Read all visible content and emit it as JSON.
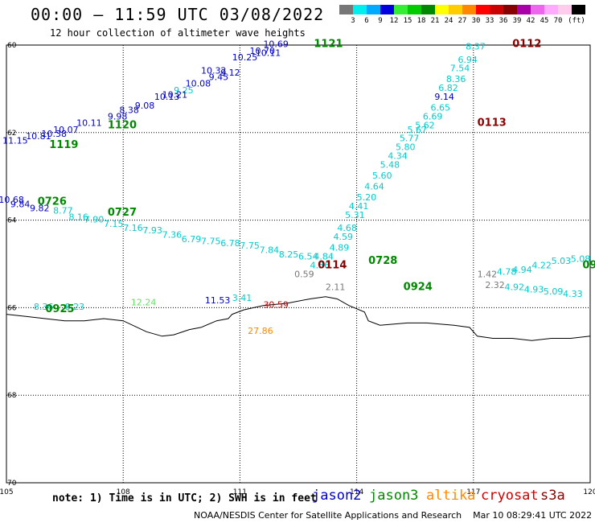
{
  "header": {
    "title": "00:00 – 11:59 UTC 03/08/2022",
    "subtitle": "12 hour collection of altimeter wave heights"
  },
  "colorbar": {
    "colors": [
      "#777777",
      "#00eeee",
      "#00aaff",
      "#0000dd",
      "#33ee33",
      "#00cc00",
      "#008800",
      "#ffff00",
      "#ffcc00",
      "#ff8800",
      "#ff0000",
      "#cc0000",
      "#880000",
      "#aa00aa",
      "#ee66ee",
      "#ffaaff",
      "#ffccee",
      "#000000"
    ],
    "labels": [
      "3",
      "6",
      "9",
      "12",
      "15",
      "18",
      "21",
      "24",
      "27",
      "30",
      "33",
      "36",
      "39",
      "42",
      "45",
      "70",
      "(ft)"
    ]
  },
  "map": {
    "lon_ticks": [
      "105",
      "108",
      "111",
      "114",
      "117",
      "120"
    ],
    "lat_ticks": [
      "60",
      "62",
      "64",
      "66",
      "68",
      "70"
    ],
    "satellites": {
      "jason2": {
        "color": "#0000cc"
      },
      "jason3": {
        "color": "#008800"
      },
      "altika": {
        "color": "#ff8800"
      },
      "cryosat": {
        "color": "#cc0000"
      },
      "s3a": {
        "color": "#880000"
      },
      "other": {
        "color": "#00cccc"
      }
    },
    "observations": [
      {
        "text": "10.69",
        "lon": 111.6,
        "lat": 60.05,
        "sat": "jason2"
      },
      {
        "text": "10.70",
        "lon": 111.25,
        "lat": 60.2,
        "sat": "jason2"
      },
      {
        "text": "10.11",
        "lon": 111.4,
        "lat": 60.25,
        "sat": "jason2"
      },
      {
        "text": "10.25",
        "lon": 110.8,
        "lat": 60.35,
        "sat": "jason2"
      },
      {
        "text": "10.32",
        "lon": 110.0,
        "lat": 60.65,
        "sat": "jason2"
      },
      {
        "text": "9.45",
        "lon": 110.2,
        "lat": 60.8,
        "sat": "jason2"
      },
      {
        "text": "9.12",
        "lon": 110.5,
        "lat": 60.7,
        "sat": "jason2"
      },
      {
        "text": "10.08",
        "lon": 109.6,
        "lat": 60.95,
        "sat": "jason2"
      },
      {
        "text": "9.25",
        "lon": 109.3,
        "lat": 61.1,
        "sat": "other"
      },
      {
        "text": "10.13",
        "lon": 108.8,
        "lat": 61.25,
        "sat": "jason2"
      },
      {
        "text": "10.21",
        "lon": 109.0,
        "lat": 61.2,
        "sat": "jason2"
      },
      {
        "text": "9.08",
        "lon": 108.3,
        "lat": 61.45,
        "sat": "jason2"
      },
      {
        "text": "8.38",
        "lon": 107.9,
        "lat": 61.55,
        "sat": "jason2"
      },
      {
        "text": "9.98",
        "lon": 107.6,
        "lat": 61.7,
        "sat": "jason2"
      },
      {
        "text": "10.11",
        "lon": 106.8,
        "lat": 61.85,
        "sat": "jason2"
      },
      {
        "text": "10.07",
        "lon": 106.2,
        "lat": 62.0,
        "sat": "jason2"
      },
      {
        "text": "10.38",
        "lon": 105.9,
        "lat": 62.1,
        "sat": "jason2"
      },
      {
        "text": "10.81",
        "lon": 105.5,
        "lat": 62.15,
        "sat": "jason2"
      },
      {
        "text": "11.15",
        "lon": 104.9,
        "lat": 62.25,
        "sat": "jason2"
      },
      {
        "text": "10.68",
        "lon": 104.8,
        "lat": 63.6,
        "sat": "jason2"
      },
      {
        "text": "9.84",
        "lon": 105.1,
        "lat": 63.7,
        "sat": "jason2"
      },
      {
        "text": "9.82",
        "lon": 105.6,
        "lat": 63.8,
        "sat": "jason2"
      },
      {
        "text": "8.77",
        "lon": 106.2,
        "lat": 63.85,
        "sat": "other"
      },
      {
        "text": "8.16",
        "lon": 106.6,
        "lat": 64.0,
        "sat": "other"
      },
      {
        "text": "7.90",
        "lon": 107.0,
        "lat": 64.05,
        "sat": "other"
      },
      {
        "text": "7.15",
        "lon": 107.5,
        "lat": 64.15,
        "sat": "other"
      },
      {
        "text": "7.16",
        "lon": 108.0,
        "lat": 64.25,
        "sat": "other"
      },
      {
        "text": "7.93",
        "lon": 108.5,
        "lat": 64.3,
        "sat": "other"
      },
      {
        "text": "7.36",
        "lon": 109.0,
        "lat": 64.4,
        "sat": "other"
      },
      {
        "text": "6.79",
        "lon": 109.5,
        "lat": 64.5,
        "sat": "other"
      },
      {
        "text": "7.75",
        "lon": 110.0,
        "lat": 64.55,
        "sat": "other"
      },
      {
        "text": "6.78",
        "lon": 110.5,
        "lat": 64.6,
        "sat": "other"
      },
      {
        "text": "7.75",
        "lon": 111.0,
        "lat": 64.65,
        "sat": "other"
      },
      {
        "text": "7.84",
        "lon": 111.5,
        "lat": 64.75,
        "sat": "other"
      },
      {
        "text": "8.25",
        "lon": 112.0,
        "lat": 64.85,
        "sat": "other"
      },
      {
        "text": "6.54",
        "lon": 112.5,
        "lat": 64.9,
        "sat": "other"
      },
      {
        "text": "4.84",
        "lon": 112.9,
        "lat": 64.9,
        "sat": "other"
      },
      {
        "text": "4.56",
        "lon": 112.8,
        "lat": 65.1,
        "sat": "other"
      },
      {
        "text": "0.59",
        "lon": 112.4,
        "lat": 65.3,
        "sat": "gray"
      },
      {
        "text": "4.89",
        "lon": 113.3,
        "lat": 64.7,
        "sat": "other"
      },
      {
        "text": "4.59",
        "lon": 113.4,
        "lat": 64.45,
        "sat": "other"
      },
      {
        "text": "4.68",
        "lon": 113.5,
        "lat": 64.25,
        "sat": "other"
      },
      {
        "text": "5.31",
        "lon": 113.7,
        "lat": 63.95,
        "sat": "other"
      },
      {
        "text": "4.41",
        "lon": 113.8,
        "lat": 63.75,
        "sat": "other"
      },
      {
        "text": "5.20",
        "lon": 114.0,
        "lat": 63.55,
        "sat": "other"
      },
      {
        "text": "4.64",
        "lon": 114.2,
        "lat": 63.3,
        "sat": "other"
      },
      {
        "text": "5.60",
        "lon": 114.4,
        "lat": 63.05,
        "sat": "other"
      },
      {
        "text": "5.48",
        "lon": 114.6,
        "lat": 62.8,
        "sat": "other"
      },
      {
        "text": "4.34",
        "lon": 114.8,
        "lat": 62.6,
        "sat": "other"
      },
      {
        "text": "5.80",
        "lon": 115.0,
        "lat": 62.4,
        "sat": "other"
      },
      {
        "text": "5.77",
        "lon": 115.1,
        "lat": 62.2,
        "sat": "other"
      },
      {
        "text": "5.67",
        "lon": 115.3,
        "lat": 62.0,
        "sat": "other"
      },
      {
        "text": "5.62",
        "lon": 115.5,
        "lat": 61.9,
        "sat": "other"
      },
      {
        "text": "6.69",
        "lon": 115.7,
        "lat": 61.7,
        "sat": "other"
      },
      {
        "text": "6.65",
        "lon": 115.9,
        "lat": 61.5,
        "sat": "other"
      },
      {
        "text": "9.14",
        "lon": 116.0,
        "lat": 61.25,
        "sat": "jason2"
      },
      {
        "text": "6.82",
        "lon": 116.1,
        "lat": 61.05,
        "sat": "other"
      },
      {
        "text": "8.36",
        "lon": 116.3,
        "lat": 60.85,
        "sat": "other"
      },
      {
        "text": "7.54",
        "lon": 116.4,
        "lat": 60.6,
        "sat": "other"
      },
      {
        "text": "6.94",
        "lon": 116.6,
        "lat": 60.4,
        "sat": "other"
      },
      {
        "text": "8.37",
        "lon": 116.8,
        "lat": 60.1,
        "sat": "other"
      },
      {
        "text": "2.11",
        "lon": 113.2,
        "lat": 65.6,
        "sat": "gray"
      },
      {
        "text": "1.42",
        "lon": 117.1,
        "lat": 65.3,
        "sat": "gray"
      },
      {
        "text": "2.32",
        "lon": 117.3,
        "lat": 65.55,
        "sat": "gray"
      },
      {
        "text": "4.78",
        "lon": 117.6,
        "lat": 65.25,
        "sat": "other"
      },
      {
        "text": "4.94",
        "lon": 118.0,
        "lat": 65.2,
        "sat": "other"
      },
      {
        "text": "4.22",
        "lon": 118.5,
        "lat": 65.1,
        "sat": "other"
      },
      {
        "text": "5.03",
        "lon": 119.0,
        "lat": 65.0,
        "sat": "other"
      },
      {
        "text": "5.08",
        "lon": 119.5,
        "lat": 64.95,
        "sat": "other"
      },
      {
        "text": "4.92",
        "lon": 117.8,
        "lat": 65.6,
        "sat": "other"
      },
      {
        "text": "4.93",
        "lon": 118.3,
        "lat": 65.65,
        "sat": "other"
      },
      {
        "text": "5.09",
        "lon": 118.8,
        "lat": 65.7,
        "sat": "other"
      },
      {
        "text": "4.33",
        "lon": 119.3,
        "lat": 65.75,
        "sat": "other"
      },
      {
        "text": "8.36",
        "lon": 105.7,
        "lat": 66.05,
        "sat": "other"
      },
      {
        "text": "8.23",
        "lon": 106.5,
        "lat": 66.05,
        "sat": "other"
      },
      {
        "text": "12.24",
        "lon": 108.2,
        "lat": 65.95,
        "sat": "lightgreen"
      },
      {
        "text": "11.53",
        "lon": 110.1,
        "lat": 65.9,
        "sat": "jason2"
      },
      {
        "text": "3.41",
        "lon": 110.8,
        "lat": 65.85,
        "sat": "other"
      },
      {
        "text": "30.59",
        "lon": 111.6,
        "lat": 66.0,
        "sat": "cryosat"
      },
      {
        "text": "27.86",
        "lon": 111.2,
        "lat": 66.6,
        "sat": "altika"
      }
    ],
    "pass_labels": [
      {
        "text": "1121",
        "lon": 112.9,
        "lat": 60.05,
        "sat": "jason3"
      },
      {
        "text": "0112",
        "lon": 118.0,
        "lat": 60.05,
        "sat": "s3a"
      },
      {
        "text": "1120",
        "lon": 107.6,
        "lat": 61.9,
        "sat": "jason3"
      },
      {
        "text": "1119",
        "lon": 106.1,
        "lat": 62.35,
        "sat": "jason3"
      },
      {
        "text": "0113",
        "lon": 117.1,
        "lat": 61.85,
        "sat": "s3a"
      },
      {
        "text": "0726",
        "lon": 105.8,
        "lat": 63.65,
        "sat": "jason3"
      },
      {
        "text": "0727",
        "lon": 107.6,
        "lat": 63.9,
        "sat": "jason3"
      },
      {
        "text": "0114",
        "lon": 113.0,
        "lat": 65.1,
        "sat": "s3a"
      },
      {
        "text": "0728",
        "lon": 114.3,
        "lat": 65.0,
        "sat": "jason3"
      },
      {
        "text": "0924",
        "lon": 115.2,
        "lat": 65.6,
        "sat": "jason3"
      },
      {
        "text": "0925",
        "lon": 106.0,
        "lat": 66.1,
        "sat": "jason3"
      },
      {
        "text": "09",
        "lon": 119.8,
        "lat": 65.1,
        "sat": "jason3"
      }
    ]
  },
  "footer": {
    "note": "note: 1) Time is in UTC; 2) SWH is in feet",
    "legend": [
      {
        "label": "jason2",
        "color": "#0000cc"
      },
      {
        "label": "jason3",
        "color": "#008800"
      },
      {
        "label": "altika",
        "color": "#ff8800"
      },
      {
        "label": "cryosat",
        "color": "#cc0000"
      },
      {
        "label": "s3a",
        "color": "#880000"
      }
    ],
    "credit": "NOAA/NESDIS Center for Satellite Applications and Research",
    "timestamp": "Mar 10 08:29:41 UTC 2022"
  }
}
